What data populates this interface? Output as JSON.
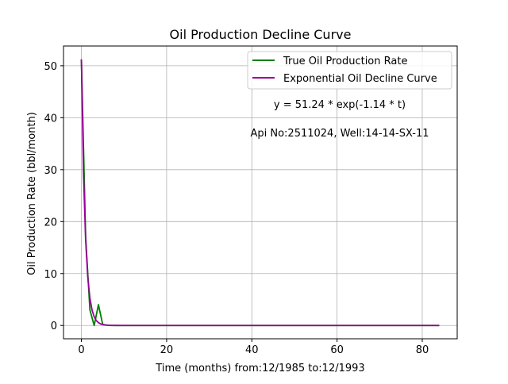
{
  "chart_data": {
    "type": "line",
    "title": "Oil Production Decline Curve",
    "xlabel": "Time (months) from:12/1985 to:12/1993",
    "ylabel": "Oil Production Rate (bbl/month)",
    "xlim": [
      -4.2,
      88.2
    ],
    "ylim": [
      -2.56,
      53.8
    ],
    "x_ticks": [
      0,
      20,
      40,
      60,
      80
    ],
    "y_ticks": [
      0,
      10,
      20,
      30,
      40,
      50
    ],
    "grid": true,
    "legend_position": "upper right",
    "annotations": [
      {
        "text": "y = 51.24 * exp(-1.14 * t)",
        "x": 60,
        "y": 42
      },
      {
        "text": "Api No:2511024, Well:14-14-SX-11",
        "x": 60,
        "y": 36.5
      }
    ],
    "series": [
      {
        "name": "True Oil Production Rate",
        "color": "#008000",
        "x": [
          0,
          1,
          2,
          3,
          4,
          5,
          6,
          7,
          8,
          9,
          10,
          12,
          15,
          20,
          30,
          40,
          50,
          60,
          70,
          80,
          84
        ],
        "y": [
          51.2,
          17,
          3,
          0,
          4,
          0.2,
          0.05,
          0,
          0,
          0,
          0,
          0,
          0,
          0,
          0,
          0,
          0,
          0,
          0,
          0,
          0
        ]
      },
      {
        "name": "Exponential Oil Decline Curve",
        "color": "#990099",
        "x": [
          0,
          0.5,
          1,
          1.5,
          2,
          2.5,
          3,
          3.5,
          4,
          4.5,
          5,
          5.5,
          6,
          7,
          8,
          10,
          15,
          20,
          30,
          40,
          50,
          60,
          70,
          80,
          84
        ],
        "y": [
          51.24,
          29.0,
          16.4,
          9.3,
          5.24,
          2.97,
          1.68,
          0.95,
          0.54,
          0.3,
          0.17,
          0.1,
          0.055,
          0.018,
          0.006,
          0.0006,
          0,
          0,
          0,
          0,
          0,
          0,
          0,
          0,
          0
        ]
      }
    ]
  }
}
